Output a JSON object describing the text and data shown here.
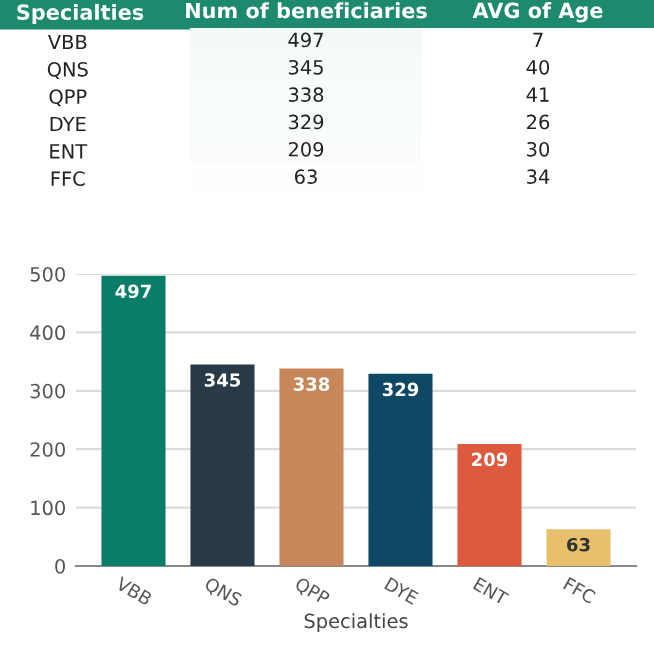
{
  "chart_data": [
    {
      "type": "heatmap",
      "ylabel": "Specialties",
      "categories": [
        "Num of beneficiaries",
        "AVG of Age"
      ],
      "y_categories": [
        "VBB",
        "QNS",
        "QPP",
        "DYE",
        "ENT",
        "FFC"
      ],
      "cells": [
        [
          497,
          7
        ],
        [
          345,
          40
        ],
        [
          338,
          41
        ],
        [
          329,
          26
        ],
        [
          209,
          30
        ],
        [
          63,
          34
        ]
      ],
      "cell_labels": [
        [
          "497",
          "7"
        ],
        [
          "345",
          "40"
        ],
        [
          "338",
          "41"
        ],
        [
          "329",
          "26"
        ],
        [
          "209",
          "30"
        ],
        [
          "63",
          "34"
        ]
      ]
    },
    {
      "type": "bar",
      "xlabel": "Specialties",
      "categories": [
        "VBB",
        "QNS",
        "QPP",
        "DYE",
        "ENT",
        "FFC"
      ],
      "values": [
        497,
        345,
        338,
        329,
        209,
        63
      ],
      "colors": [
        "#0a7d69",
        "#283a47",
        "#c8875b",
        "#0f4864",
        "#dd5a3f",
        "#e8bf6a"
      ],
      "ylim": [
        0,
        500
      ],
      "yticks": [
        0,
        100,
        200,
        300,
        400,
        500
      ],
      "grid": "y",
      "data_labels": true
    }
  ]
}
